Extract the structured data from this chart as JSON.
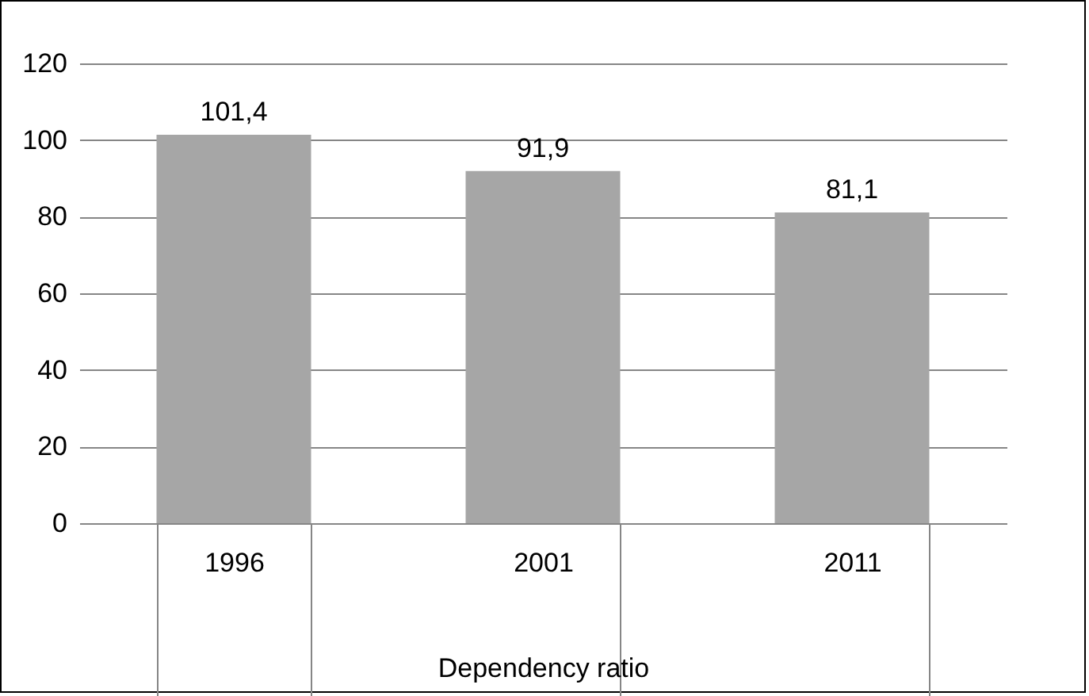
{
  "chart_data": {
    "type": "bar",
    "xlabel": "Dependency ratio",
    "categories": [
      "1996",
      "2001",
      "2011"
    ],
    "values": [
      101.4,
      91.9,
      81.1
    ],
    "value_labels": [
      "101,4",
      "91,9",
      "81,1"
    ],
    "color": "#a6a6a6",
    "ylim": [
      0,
      120
    ],
    "yticks": [
      0,
      20,
      40,
      60,
      80,
      100,
      120
    ],
    "grid": "y"
  }
}
